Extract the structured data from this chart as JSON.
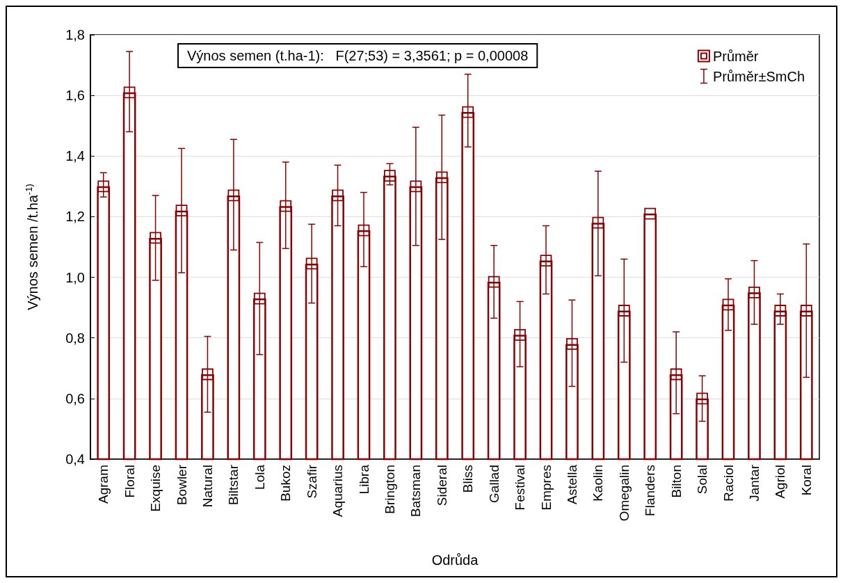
{
  "chart_data": {
    "type": "bar",
    "xlabel": "Odrůda",
    "ylabel": "Výnos semen /t.ha$^{-1)}$",
    "annotations": [
      "Výnos semen (t.ha-1):   F(27;53) = 3,3561; p = 0,00008",
      "Průměr±SmCh"
    ],
    "categories": [
      "Agram",
      "Floral",
      "Exquise",
      "Bowler",
      "Natural",
      "Biltstar",
      "Lola",
      "Bukoz",
      "Szafir",
      "Aquarius",
      "Libra",
      "Brington",
      "Batsman",
      "Sideral",
      "Bliss",
      "Gallad",
      "Festival",
      "Empres",
      "Astella",
      "Kaolin",
      "Omegalin",
      "Flanders",
      "Bilton",
      "Solal",
      "Raciol",
      "Jantar",
      "Agriol",
      "Koral"
    ],
    "series": [
      {
        "color": "#8b0000",
        "values": [
          1.3,
          1.61,
          1.13,
          1.22,
          0.68,
          1.27,
          0.93,
          1.235,
          1.045,
          1.27,
          1.155,
          1.335,
          1.3,
          1.33,
          1.545,
          0.985,
          0.81,
          1.055,
          0.78,
          1.18,
          0.89,
          1.21,
          0.68,
          0.6,
          0.91,
          0.95,
          0.89,
          0.89
        ],
        "errors": [
          [
            1.265,
            1.345
          ],
          [
            1.48,
            1.745
          ],
          [
            0.99,
            1.27
          ],
          [
            1.015,
            1.425
          ],
          [
            0.555,
            0.805
          ],
          [
            1.09,
            1.455
          ],
          [
            0.745,
            1.115
          ],
          [
            1.095,
            1.38
          ],
          [
            0.915,
            1.175
          ],
          [
            1.17,
            1.37
          ],
          [
            1.035,
            1.28
          ],
          [
            1.305,
            1.375
          ],
          [
            1.105,
            1.495
          ],
          [
            1.125,
            1.535
          ],
          [
            1.43,
            1.67
          ],
          [
            0.865,
            1.105
          ],
          [
            0.705,
            0.92
          ],
          [
            0.945,
            1.17
          ],
          [
            0.64,
            0.925
          ],
          [
            1.005,
            1.35
          ],
          [
            0.72,
            1.06
          ],
          null,
          [
            0.55,
            0.82
          ],
          [
            0.525,
            0.675
          ],
          [
            0.825,
            0.995
          ],
          [
            0.845,
            1.055
          ],
          [
            0.845,
            0.945
          ],
          [
            0.67,
            1.11
          ]
        ]
      },
      {
        "type": "scatter",
        "name": "Průměr",
        "color": "#8b0000",
        "x": [
          "Agram",
          "Floral",
          "Exquise",
          "Bowler",
          "Natural",
          "Biltstar",
          "Lola",
          "Bukoz",
          "Szafir",
          "Aquarius",
          "Libra",
          "Brington",
          "Batsman",
          "Sideral",
          "Bliss",
          "Gallad",
          "Festival",
          "Empres",
          "Astella",
          "Kaolin",
          "Omegalin",
          "Flanders",
          "Bilton",
          "Solal",
          "Raciol",
          "Jantar",
          "Agriol",
          "Koral"
        ],
        "values": [
          1.3,
          1.61,
          1.13,
          1.22,
          0.68,
          1.27,
          0.93,
          1.235,
          1.045,
          1.27,
          1.155,
          1.335,
          1.3,
          1.33,
          1.545,
          0.985,
          0.81,
          1.055,
          0.78,
          1.18,
          0.89,
          1.21,
          0.68,
          0.6,
          0.91,
          0.95,
          0.89,
          0.89
        ]
      }
    ],
    "ylim": [
      0.4,
      1.8
    ],
    "yticks": [
      {
        "value": 0.4,
        "label": "0,4"
      },
      {
        "value": 0.6,
        "label": "0,6"
      },
      {
        "value": 0.8,
        "label": "0,8"
      },
      {
        "value": 1.0,
        "label": "1,0"
      },
      {
        "value": 1.2,
        "label": "1,2"
      },
      {
        "value": 1.4,
        "label": "1,4"
      },
      {
        "value": 1.6,
        "label": "1,6"
      },
      {
        "value": 1.8,
        "label": "1,8"
      }
    ],
    "grid": "y",
    "legend": "top right",
    "marker": "square"
  }
}
